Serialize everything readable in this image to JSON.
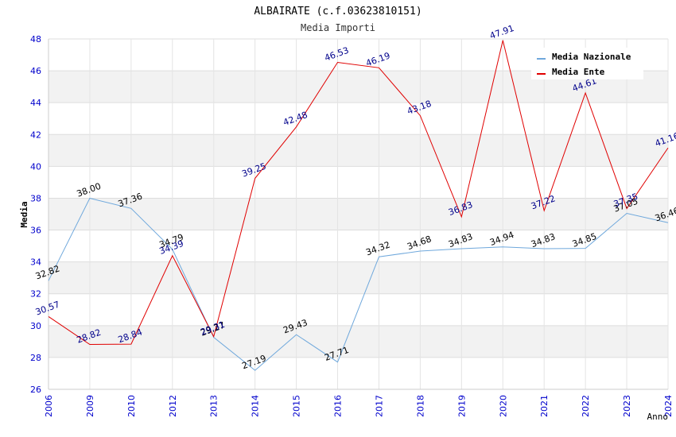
{
  "chart_data": {
    "type": "line",
    "title": "ALBAIRATE (c.f.03623810151)",
    "subtitle": "Media Importi",
    "xlabel": "Anno",
    "ylabel": "Media",
    "categories": [
      "2006",
      "2009",
      "2010",
      "2012",
      "2013",
      "2014",
      "2015",
      "2016",
      "2017",
      "2018",
      "2019",
      "2020",
      "2021",
      "2022",
      "2023",
      "2024"
    ],
    "ylim": [
      26,
      48
    ],
    "yticks": [
      "26",
      "28",
      "30",
      "32",
      "34",
      "36",
      "38",
      "40",
      "42",
      "44",
      "46",
      "48"
    ],
    "grid": true,
    "legend_position": "top-right",
    "series": [
      {
        "name": "Media Nazionale",
        "color": "#6fa8dc",
        "label_color": "#000000",
        "values": [
          32.82,
          38.0,
          37.36,
          34.79,
          29.27,
          27.19,
          29.43,
          27.71,
          34.32,
          34.68,
          34.83,
          34.94,
          34.83,
          34.85,
          37.05,
          36.46
        ],
        "labels": [
          "32.82",
          "38.00",
          "37.36",
          "34.79",
          "29.27",
          "27.19",
          "29.43",
          "27.71",
          "34.32",
          "34.68",
          "34.83",
          "34.94",
          "34.83",
          "34.85",
          "37.05",
          "36.46"
        ]
      },
      {
        "name": "Media Ente",
        "color": "#e00000",
        "label_color": "#00008b",
        "values": [
          30.57,
          28.82,
          28.84,
          34.39,
          29.31,
          39.25,
          42.48,
          46.53,
          46.19,
          43.18,
          36.83,
          47.91,
          37.22,
          44.61,
          37.35,
          41.16
        ],
        "labels": [
          "30.57",
          "28.82",
          "28.84",
          "34.39",
          "29.31",
          "39.25",
          "42.48",
          "46.53",
          "46.19",
          "43.18",
          "36.83",
          "47.91",
          "37.22",
          "44.61",
          "37.35",
          "41.16"
        ]
      }
    ]
  }
}
